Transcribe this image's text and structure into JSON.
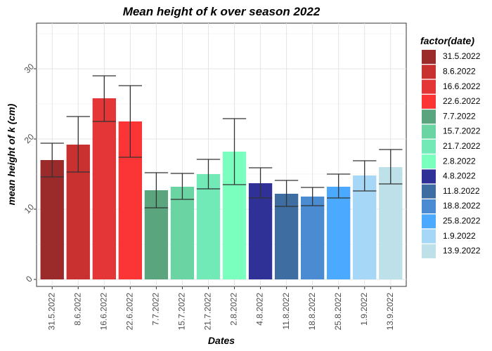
{
  "chart_data": {
    "type": "bar",
    "title": "Mean height of k over season 2022",
    "xlabel": "Dates",
    "ylabel": "mean height of k (cm)",
    "ylim": [
      -1,
      36.5
    ],
    "yticks": [
      0,
      10,
      20,
      30
    ],
    "grid": true,
    "legend_title": "factor(date)",
    "legend_position": "right",
    "categories": [
      "31.5.2022",
      "8.6.2022",
      "16.6.2022",
      "22.6.2022",
      "7.7.2022",
      "15.7.2022",
      "21.7.2022",
      "2.8.2022",
      "4.8.2022",
      "11.8.2022",
      "18.8.2022",
      "25.8.2022",
      "1.9.2022",
      "13.9.2022"
    ],
    "values": [
      17.0,
      19.2,
      25.8,
      22.5,
      12.7,
      13.2,
      15.0,
      18.2,
      13.7,
      12.2,
      11.8,
      13.2,
      14.8,
      16.0
    ],
    "error_low": [
      14.6,
      15.3,
      22.5,
      17.4,
      10.2,
      11.4,
      12.9,
      13.5,
      11.6,
      10.4,
      10.5,
      11.6,
      12.6,
      13.6
    ],
    "error_high": [
      19.4,
      23.2,
      29.0,
      27.6,
      15.2,
      15.1,
      17.1,
      22.9,
      15.9,
      14.1,
      13.1,
      15.0,
      16.9,
      18.5
    ],
    "colors": [
      "#9b2b2b",
      "#c93131",
      "#e53637",
      "#fb3436",
      "#5aa57d",
      "#6bd4a3",
      "#72eab7",
      "#7affbf",
      "#2f3196",
      "#3e6da1",
      "#4a8bd2",
      "#4ba9ff",
      "#a6d7f6",
      "#bde0e9"
    ]
  }
}
